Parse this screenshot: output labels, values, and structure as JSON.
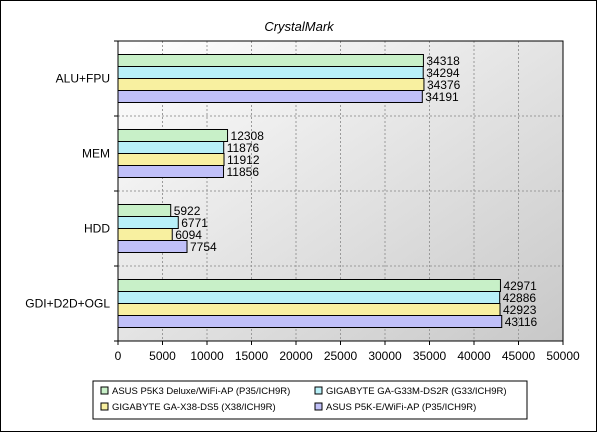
{
  "chart_data": {
    "type": "bar",
    "orientation": "horizontal",
    "title": "CrystalMark",
    "categories": [
      "ALU+FPU",
      "MEM",
      "HDD",
      "GDI+D2D+OGL"
    ],
    "series": [
      {
        "name": "ASUS P5K3 Deluxe/WiFi-AP (P35/ICH9R)",
        "color": "#c8f0c8",
        "values": [
          34318,
          12308,
          5922,
          42971
        ]
      },
      {
        "name": "GIGABYTE GA-G33M-DS2R (G33/ICH9R)",
        "color": "#b8f0f8",
        "values": [
          34294,
          11876,
          6771,
          42886
        ]
      },
      {
        "name": "GIGABYTE GA-X38-DS5 (X38/ICH9R)",
        "color": "#f8f0a0",
        "values": [
          34376,
          11912,
          6094,
          42923
        ]
      },
      {
        "name": "ASUS P5K-E/WiFi-AP (P35/ICH9R)",
        "color": "#c0c0f8",
        "values": [
          34191,
          11856,
          7754,
          43116
        ]
      }
    ],
    "xlim": [
      0,
      50000
    ],
    "xticks": [
      0,
      5000,
      10000,
      15000,
      20000,
      25000,
      30000,
      35000,
      40000,
      45000,
      50000
    ],
    "grid": true,
    "legend_position": "bottom",
    "plot_background_gradient": [
      "#ffffff",
      "#c8c8c8"
    ]
  }
}
